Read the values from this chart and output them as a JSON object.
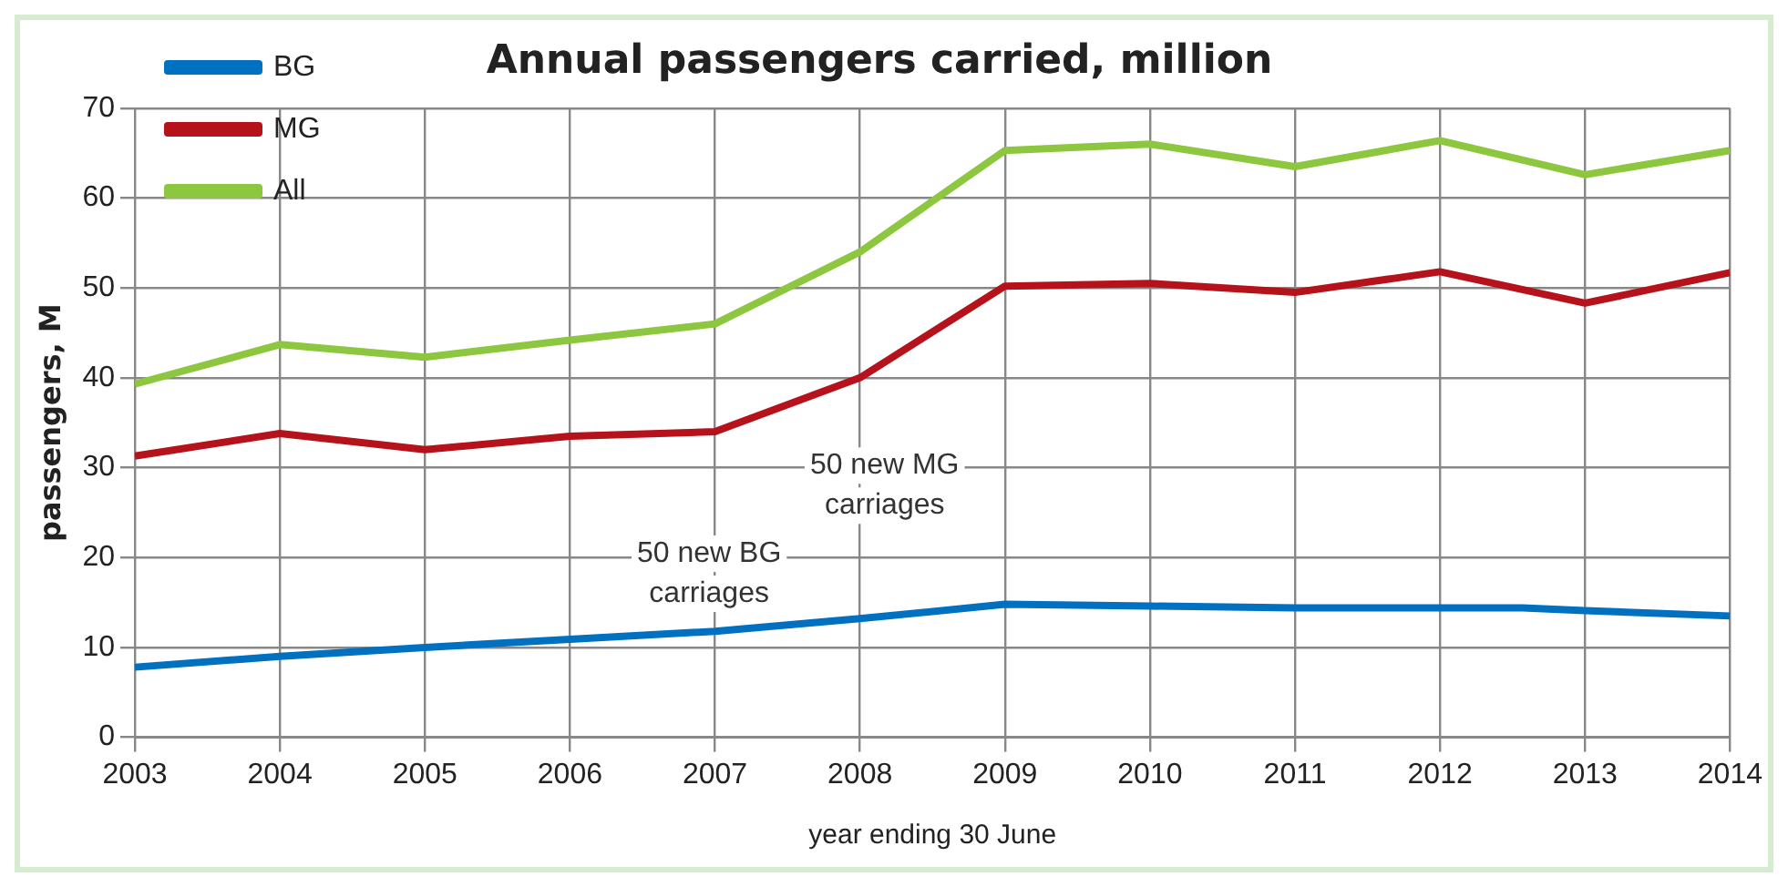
{
  "chart_data": {
    "type": "line",
    "title": "Annual passengers carried, million",
    "xlabel": "year ending 30 June",
    "ylabel": "passengers, M",
    "xlim": [
      2003,
      2014
    ],
    "xticks": [
      2003,
      2004,
      2005,
      2006,
      2007,
      2008,
      2009,
      2010,
      2011,
      2012,
      2013,
      2014
    ],
    "ylim": [
      0,
      70
    ],
    "yticks": [
      0,
      10,
      20,
      30,
      40,
      50,
      60,
      70
    ],
    "grid": true,
    "legend": "top left",
    "marker": "none",
    "line_style": "solid",
    "series": [
      {
        "name": "BG",
        "color": "#0070c0",
        "x": [
          2003,
          2004,
          2005,
          2006,
          2007,
          2008,
          2009,
          2010,
          2011,
          2012,
          2012.57,
          2013,
          2014
        ],
        "values": [
          7.8,
          9,
          10,
          10.9,
          11.8,
          13.2,
          14.8,
          14.6,
          14.4,
          14.4,
          14.4,
          14.1,
          13.5
        ]
      },
      {
        "name": "MG",
        "color": "#b5121b",
        "x": [
          2003,
          2004,
          2005,
          2006,
          2007,
          2008,
          2009,
          2010,
          2011,
          2012,
          2013,
          2014
        ],
        "values": [
          31.3,
          33.8,
          32,
          33.5,
          34,
          40,
          50.2,
          50.5,
          49.5,
          51.8,
          48.3,
          51.7
        ]
      },
      {
        "name": "All",
        "color": "#8dc63f",
        "x": [
          2003,
          2004,
          2005,
          2006,
          2007,
          2008,
          2009,
          2010,
          2011,
          2012,
          2013,
          2014
        ],
        "values": [
          39.3,
          43.7,
          42.3,
          44.2,
          46,
          54,
          65.3,
          66,
          63.5,
          66.4,
          62.6,
          65.3
        ]
      }
    ],
    "annotations": [
      "50 new BG carriages",
      "50 new MG carriages"
    ]
  }
}
